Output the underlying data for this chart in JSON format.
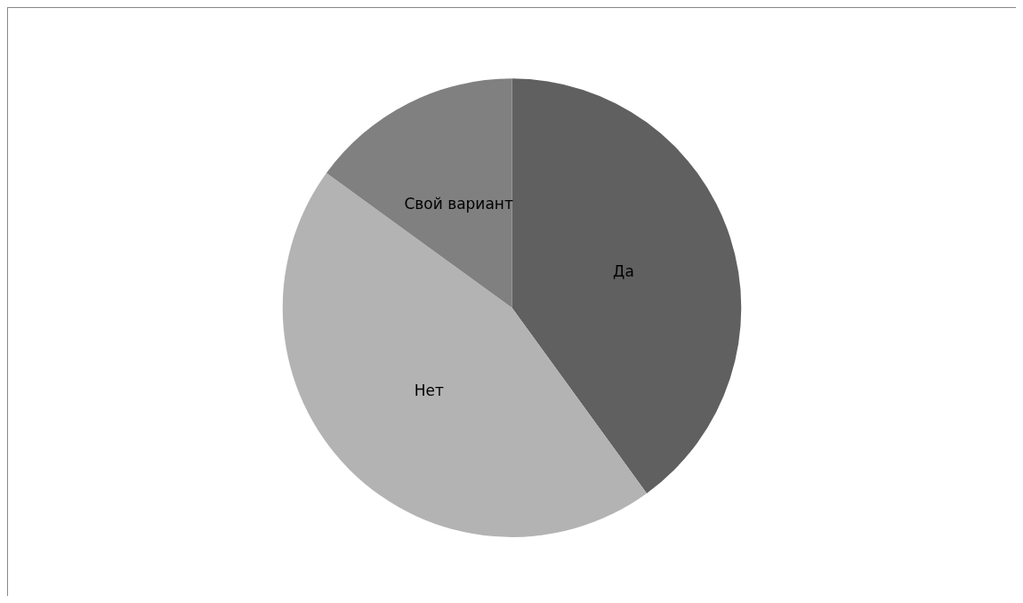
{
  "chart_data": {
    "type": "pie",
    "categories": [
      "Да",
      "Нет",
      "Свой вариант"
    ],
    "values": [
      40,
      45,
      15
    ],
    "colors": [
      "#606060",
      "#b3b3b3",
      "#808080"
    ],
    "legend": false
  }
}
